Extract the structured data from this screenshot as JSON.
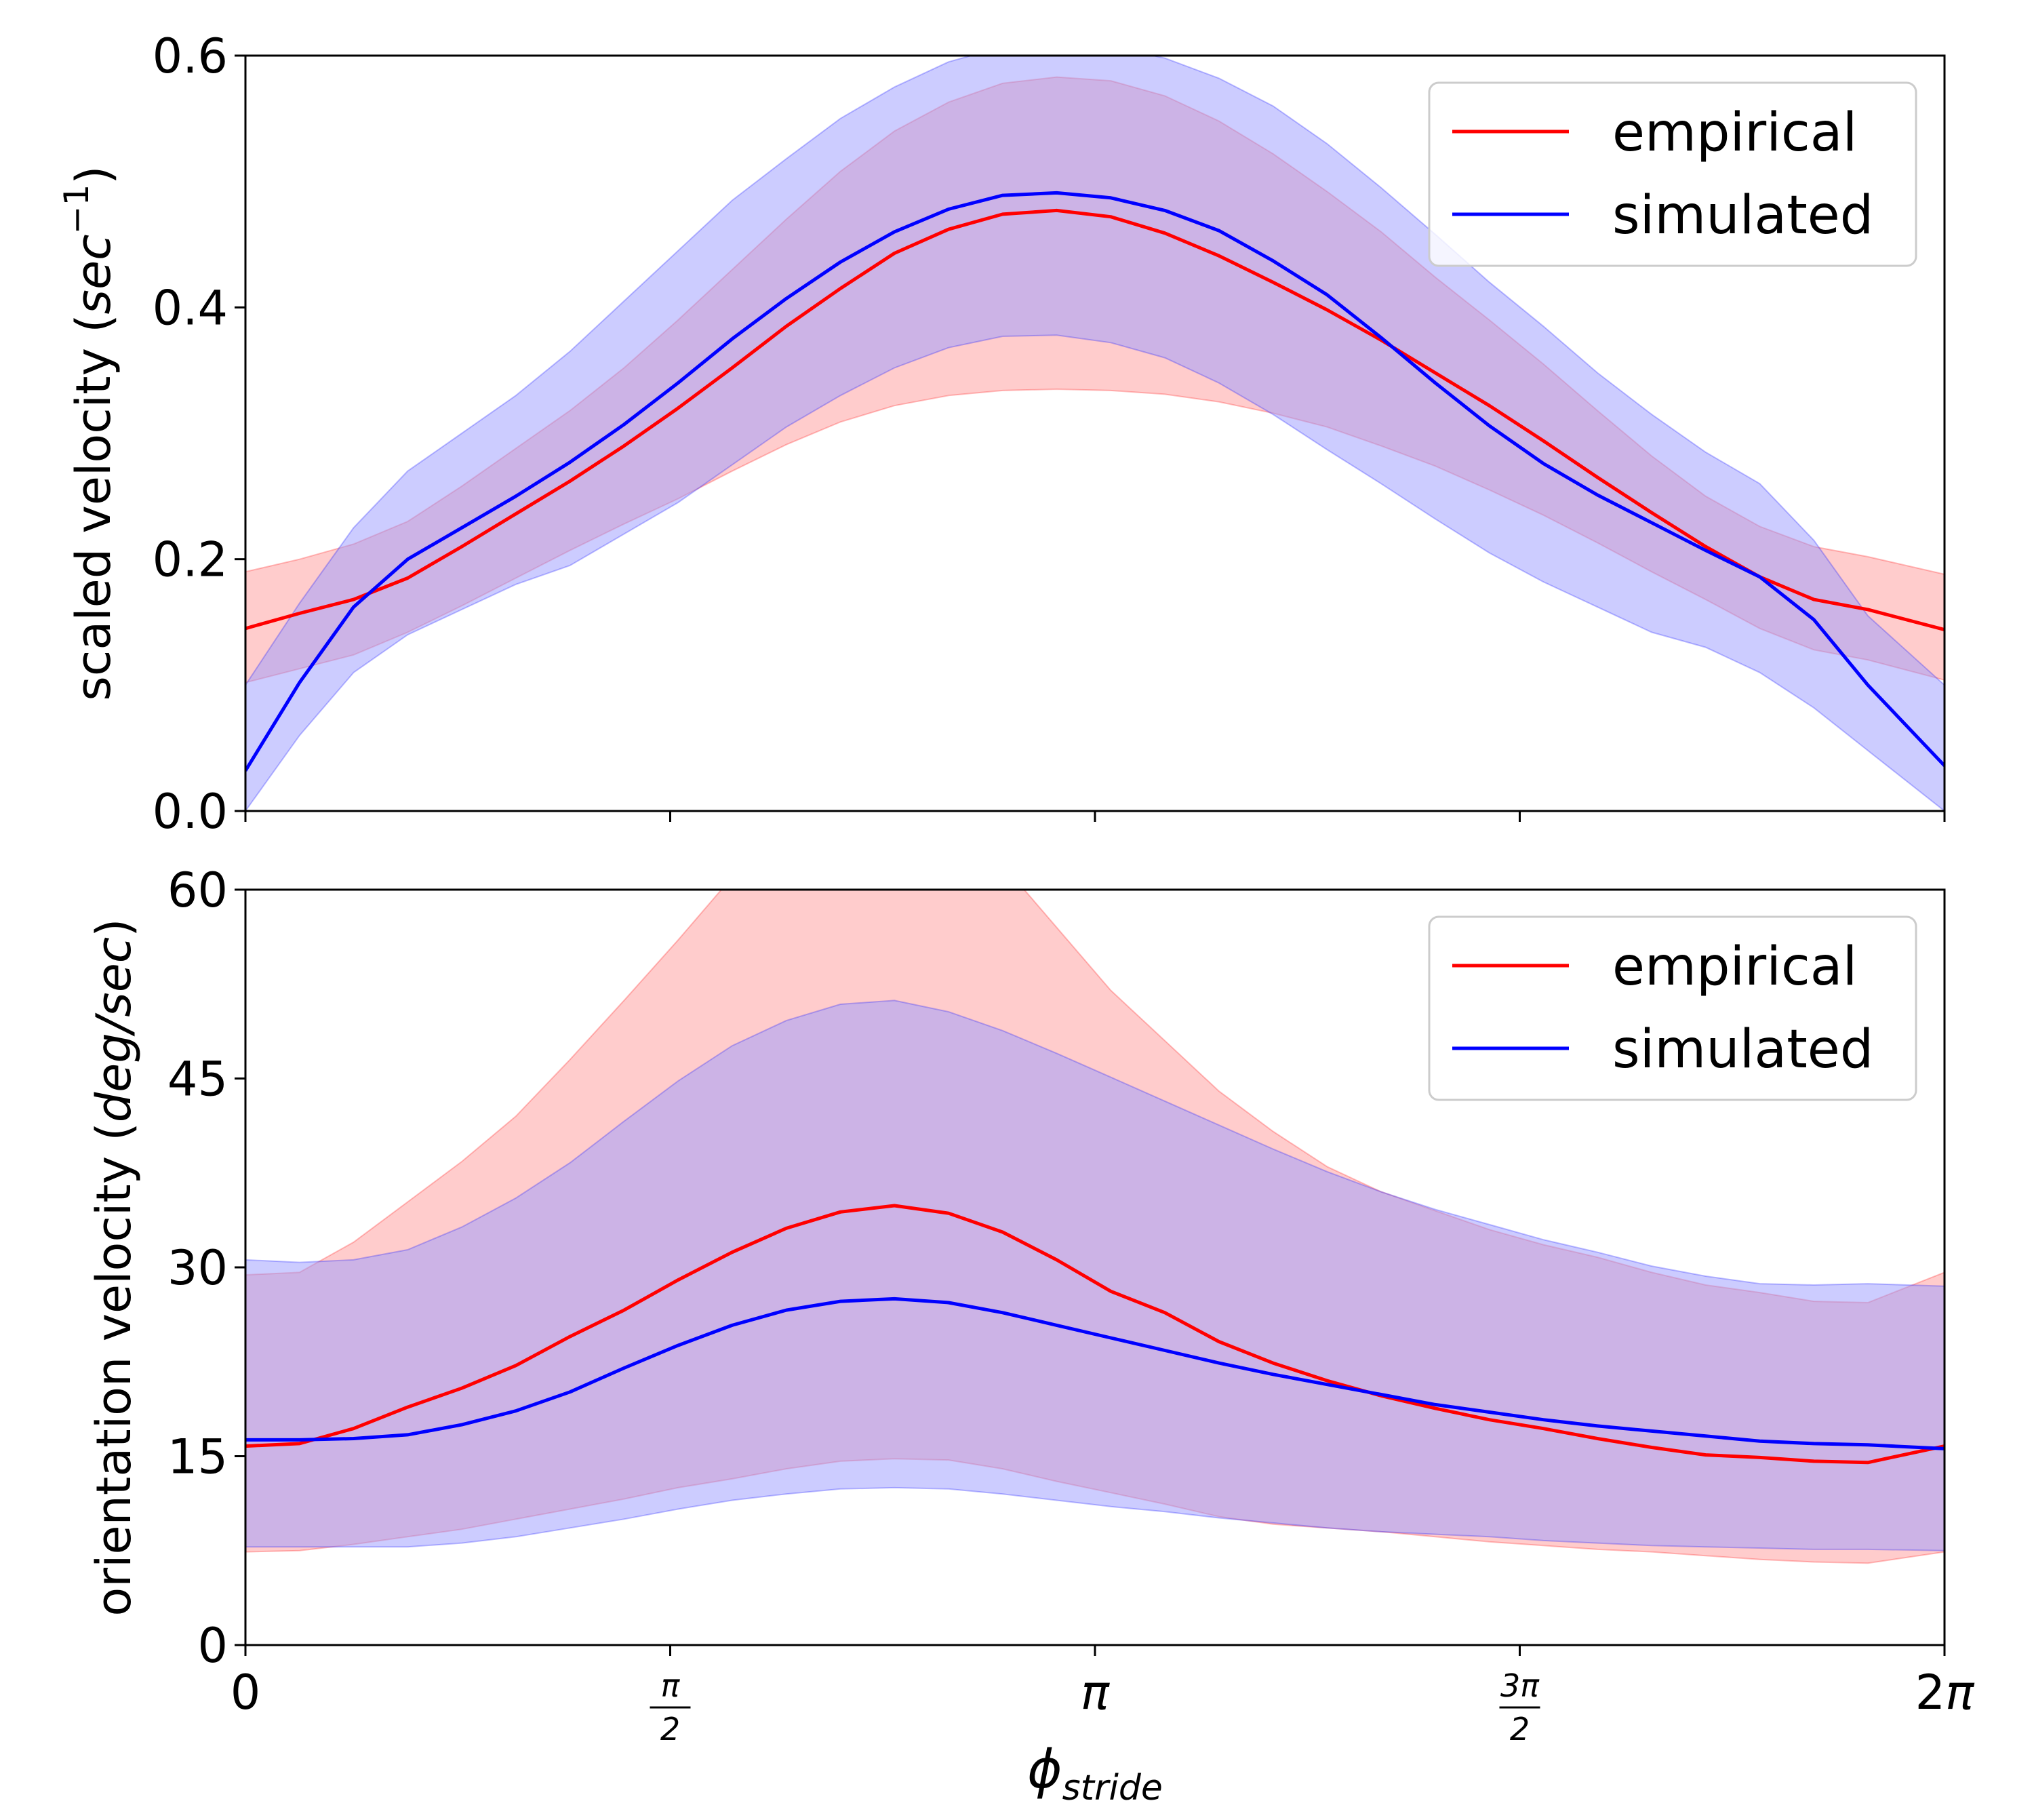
{
  "chart_data": [
    {
      "type": "line",
      "title": "",
      "ylabel": {
        "prefix": "scaled velocity (",
        "unit": "sec",
        "sup": "−1",
        "suffix": ")"
      },
      "ylim": [
        0,
        0.6
      ],
      "yticks": [
        0.0,
        0.2,
        0.4,
        0.6
      ],
      "yticklabels": [
        "0.0",
        "0.2",
        "0.4",
        "0.6"
      ],
      "xlim": [
        0,
        6.2832
      ],
      "legend": {
        "position": "top-right",
        "entries": [
          "empirical",
          "simulated"
        ]
      },
      "grid": false,
      "series": [
        {
          "name": "empirical",
          "color": "#ff0000",
          "band_color": "#ff9999",
          "x": [
            0,
            0.2,
            0.4,
            0.6,
            0.8,
            1.0,
            1.2,
            1.4,
            1.6,
            1.8,
            2.0,
            2.2,
            2.4,
            2.6,
            2.8,
            3.0,
            3.2,
            3.4,
            3.6,
            3.8,
            4.0,
            4.2,
            4.4,
            4.6,
            4.8,
            5.0,
            5.2,
            5.4,
            5.6,
            5.8,
            6.0,
            6.2832
          ],
          "mean": [
            0.145,
            0.157,
            0.168,
            0.185,
            0.21,
            0.236,
            0.262,
            0.29,
            0.32,
            0.352,
            0.385,
            0.415,
            0.443,
            0.462,
            0.474,
            0.477,
            0.472,
            0.459,
            0.441,
            0.42,
            0.398,
            0.374,
            0.348,
            0.322,
            0.294,
            0.265,
            0.237,
            0.21,
            0.186,
            0.168,
            0.16,
            0.144
          ],
          "lower": [
            0.102,
            0.113,
            0.124,
            0.142,
            0.163,
            0.185,
            0.207,
            0.228,
            0.248,
            0.27,
            0.291,
            0.309,
            0.322,
            0.33,
            0.334,
            0.335,
            0.334,
            0.331,
            0.325,
            0.316,
            0.305,
            0.29,
            0.274,
            0.255,
            0.235,
            0.213,
            0.19,
            0.168,
            0.145,
            0.128,
            0.12,
            0.104
          ],
          "upper": [
            0.19,
            0.2,
            0.212,
            0.23,
            0.258,
            0.288,
            0.318,
            0.352,
            0.39,
            0.43,
            0.47,
            0.508,
            0.54,
            0.563,
            0.578,
            0.583,
            0.58,
            0.568,
            0.548,
            0.522,
            0.492,
            0.46,
            0.424,
            0.39,
            0.355,
            0.318,
            0.282,
            0.25,
            0.226,
            0.21,
            0.202,
            0.188
          ]
        },
        {
          "name": "simulated",
          "color": "#0000ff",
          "band_color": "#9999ff",
          "x": [
            0,
            0.2,
            0.4,
            0.6,
            0.8,
            1.0,
            1.2,
            1.4,
            1.6,
            1.8,
            2.0,
            2.2,
            2.4,
            2.6,
            2.8,
            3.0,
            3.2,
            3.4,
            3.6,
            3.8,
            4.0,
            4.2,
            4.4,
            4.6,
            4.8,
            5.0,
            5.2,
            5.4,
            5.6,
            5.8,
            6.0,
            6.2832
          ],
          "mean": [
            0.032,
            0.102,
            0.162,
            0.2,
            0.225,
            0.25,
            0.277,
            0.307,
            0.34,
            0.375,
            0.407,
            0.436,
            0.46,
            0.478,
            0.489,
            0.491,
            0.487,
            0.477,
            0.461,
            0.437,
            0.41,
            0.376,
            0.34,
            0.306,
            0.276,
            0.251,
            0.229,
            0.207,
            0.186,
            0.152,
            0.1,
            0.036
          ],
          "lower": [
            0.0,
            0.06,
            0.11,
            0.14,
            0.16,
            0.18,
            0.195,
            0.22,
            0.245,
            0.275,
            0.305,
            0.33,
            0.352,
            0.368,
            0.377,
            0.378,
            0.372,
            0.36,
            0.34,
            0.315,
            0.287,
            0.26,
            0.232,
            0.205,
            0.182,
            0.162,
            0.142,
            0.13,
            0.11,
            0.082,
            0.048,
            0.0
          ],
          "upper": [
            0.1,
            0.165,
            0.225,
            0.27,
            0.3,
            0.33,
            0.365,
            0.405,
            0.445,
            0.485,
            0.518,
            0.55,
            0.575,
            0.595,
            0.607,
            0.61,
            0.607,
            0.598,
            0.582,
            0.56,
            0.53,
            0.495,
            0.458,
            0.42,
            0.385,
            0.348,
            0.315,
            0.285,
            0.26,
            0.215,
            0.155,
            0.1
          ]
        }
      ]
    },
    {
      "type": "line",
      "title": "",
      "ylabel": {
        "prefix": "orientation velocity (",
        "unit": "deg/sec",
        "suffix": ")"
      },
      "ylim": [
        0,
        60
      ],
      "yticks": [
        0,
        15,
        30,
        45,
        60
      ],
      "yticklabels": [
        "0",
        "15",
        "30",
        "45",
        "60"
      ],
      "xlim": [
        0,
        6.2832
      ],
      "xlabel": {
        "symbol": "ϕ",
        "sub": "stride"
      },
      "xticks": [
        0,
        1.5708,
        3.1416,
        4.7124,
        6.2832
      ],
      "xticklabels": [
        {
          "text": "0"
        },
        {
          "num": "π",
          "den": "2"
        },
        {
          "text": "π"
        },
        {
          "num": "3π",
          "den": "2"
        },
        {
          "text": "2π"
        }
      ],
      "legend": {
        "position": "top-right",
        "entries": [
          "empirical",
          "simulated"
        ]
      },
      "grid": false,
      "series": [
        {
          "name": "empirical",
          "color": "#ff0000",
          "band_color": "#ff9999",
          "x": [
            0,
            0.2,
            0.4,
            0.6,
            0.8,
            1.0,
            1.2,
            1.4,
            1.6,
            1.8,
            2.0,
            2.2,
            2.4,
            2.6,
            2.8,
            3.0,
            3.2,
            3.4,
            3.6,
            3.8,
            4.0,
            4.2,
            4.4,
            4.6,
            4.8,
            5.0,
            5.2,
            5.4,
            5.6,
            5.8,
            6.0,
            6.2832
          ],
          "mean": [
            15.8,
            16.0,
            17.2,
            18.9,
            20.4,
            22.2,
            24.5,
            26.6,
            29.0,
            31.2,
            33.1,
            34.4,
            34.9,
            34.3,
            32.8,
            30.6,
            28.1,
            26.4,
            24.1,
            22.4,
            21.0,
            19.8,
            18.8,
            17.9,
            17.2,
            16.4,
            15.7,
            15.1,
            14.9,
            14.6,
            14.5,
            15.8
          ],
          "lower": [
            7.4,
            7.5,
            8.0,
            8.6,
            9.2,
            10.0,
            10.8,
            11.6,
            12.5,
            13.2,
            14.0,
            14.6,
            14.8,
            14.7,
            14.0,
            13.0,
            12.1,
            11.2,
            10.2,
            9.6,
            9.3,
            9.0,
            8.6,
            8.2,
            7.9,
            7.6,
            7.4,
            7.1,
            6.8,
            6.6,
            6.5,
            7.4
          ],
          "upper": [
            29.4,
            29.6,
            32.0,
            35.2,
            38.4,
            42.0,
            46.5,
            51.2,
            56.0,
            61.0,
            64.0,
            65.0,
            65.0,
            64.0,
            62.0,
            57.0,
            52.0,
            48.0,
            44.0,
            40.8,
            38.0,
            36.0,
            34.5,
            33.0,
            31.8,
            30.8,
            29.6,
            28.6,
            28.0,
            27.3,
            27.2,
            29.6
          ]
        },
        {
          "name": "simulated",
          "color": "#0000ff",
          "band_color": "#9999ff",
          "x": [
            0,
            0.2,
            0.4,
            0.6,
            0.8,
            1.0,
            1.2,
            1.4,
            1.6,
            1.8,
            2.0,
            2.2,
            2.4,
            2.6,
            2.8,
            3.0,
            3.2,
            3.4,
            3.6,
            3.8,
            4.0,
            4.2,
            4.4,
            4.6,
            4.8,
            5.0,
            5.2,
            5.4,
            5.6,
            5.8,
            6.0,
            6.2832
          ],
          "mean": [
            16.3,
            16.3,
            16.4,
            16.7,
            17.5,
            18.6,
            20.1,
            22.0,
            23.8,
            25.4,
            26.6,
            27.3,
            27.5,
            27.2,
            26.4,
            25.4,
            24.4,
            23.4,
            22.4,
            21.5,
            20.7,
            19.9,
            19.1,
            18.5,
            17.9,
            17.4,
            17.0,
            16.6,
            16.2,
            16.0,
            15.9,
            15.6
          ],
          "lower": [
            7.8,
            7.8,
            7.8,
            7.8,
            8.1,
            8.6,
            9.3,
            10.0,
            10.8,
            11.5,
            12.0,
            12.4,
            12.5,
            12.4,
            12.0,
            11.5,
            11.0,
            10.6,
            10.1,
            9.7,
            9.3,
            9.0,
            8.8,
            8.6,
            8.3,
            8.1,
            7.9,
            7.8,
            7.7,
            7.6,
            7.6,
            7.5
          ],
          "upper": [
            30.6,
            30.4,
            30.6,
            31.4,
            33.2,
            35.5,
            38.3,
            41.6,
            44.8,
            47.6,
            49.6,
            50.9,
            51.2,
            50.3,
            48.8,
            47.0,
            45.1,
            43.2,
            41.3,
            39.4,
            37.6,
            36.0,
            34.6,
            33.4,
            32.2,
            31.2,
            30.1,
            29.3,
            28.7,
            28.6,
            28.7,
            28.5
          ]
        }
      ]
    }
  ]
}
